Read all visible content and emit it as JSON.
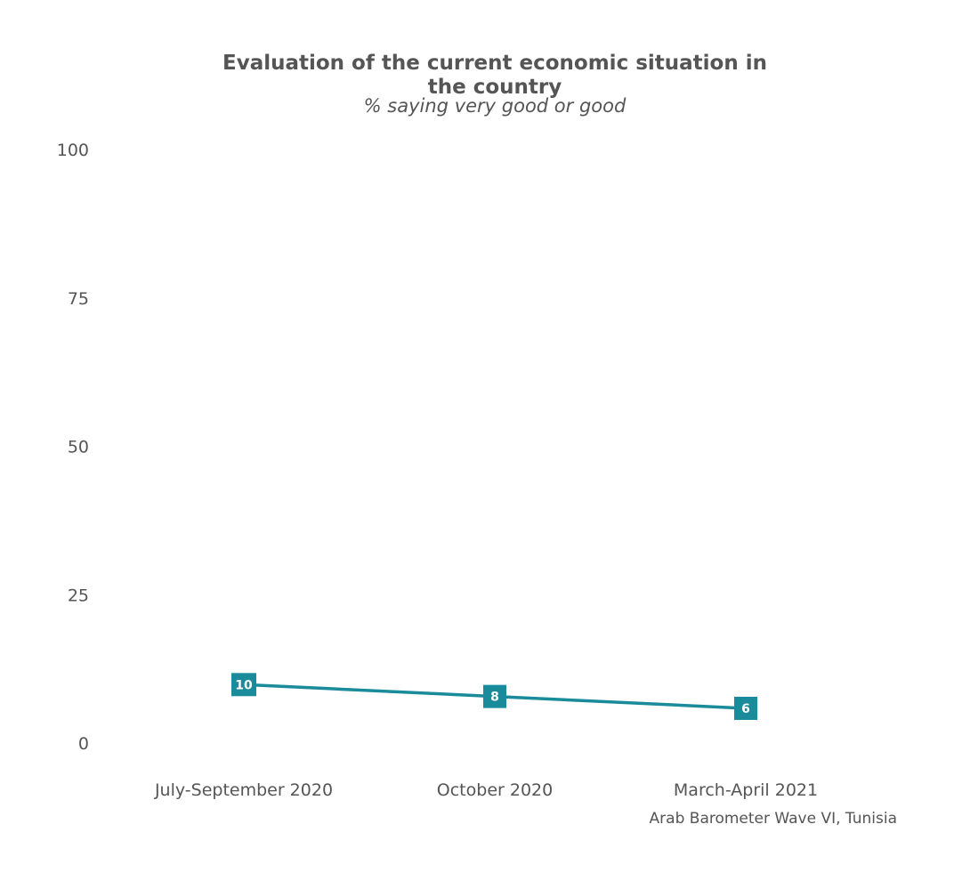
{
  "chart_data": {
    "type": "line",
    "title": "Evaluation of the current economic situation in the country",
    "subtitle": "% saying very good or good",
    "caption": "Arab Barometer Wave VI, Tunisia",
    "categories": [
      "July-September 2020",
      "October 2020",
      "March-April 2021"
    ],
    "series": [
      {
        "values": [
          10,
          8,
          6
        ],
        "color": "#1a8b9b"
      }
    ],
    "ylim": [
      0,
      100
    ],
    "yticks": [
      0,
      25,
      50,
      75,
      100
    ],
    "grid": false,
    "legend": "none"
  }
}
